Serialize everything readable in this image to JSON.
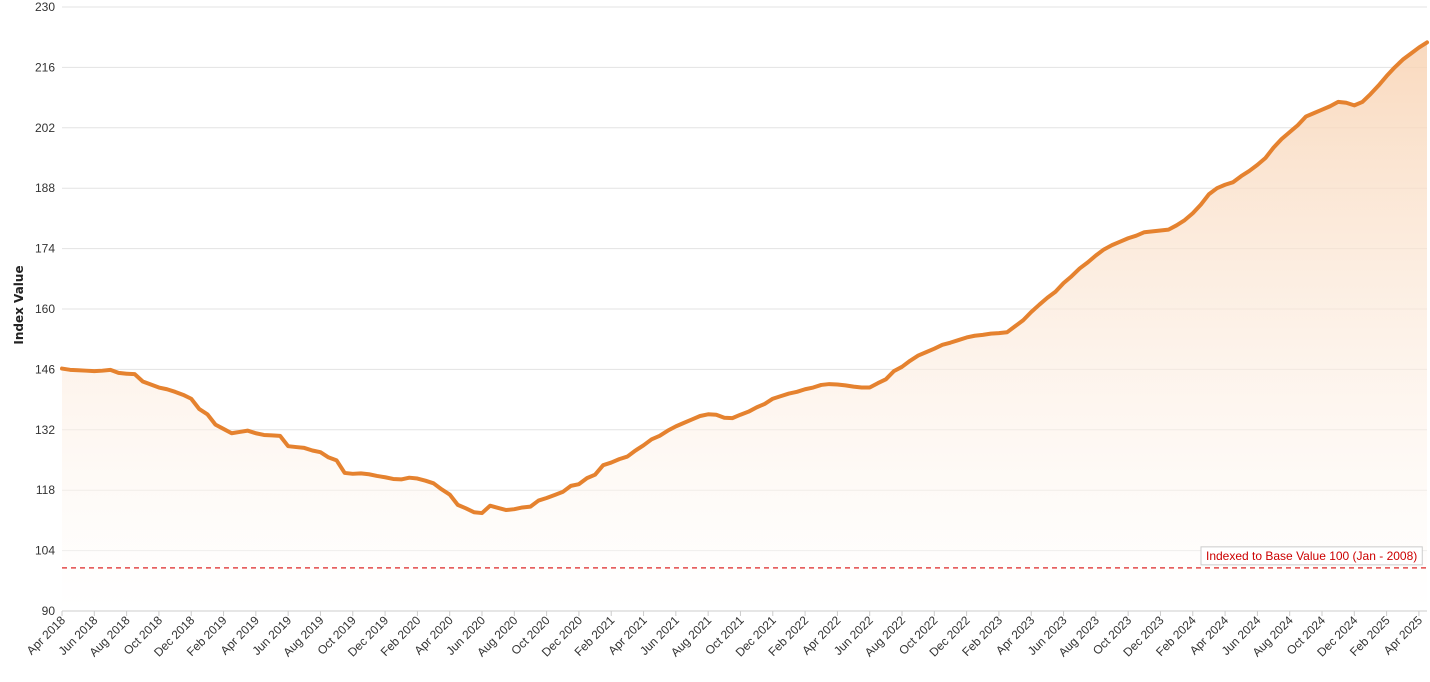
{
  "chart_data": {
    "type": "area",
    "ylabel": "Index Value",
    "xlabel": "",
    "title": "",
    "ylim": [
      90,
      230
    ],
    "yticks": [
      90,
      104,
      118,
      132,
      146,
      160,
      174,
      188,
      202,
      216,
      230
    ],
    "grid": true,
    "x_tick_labels": [
      "Apr 2018",
      "Jun 2018",
      "Aug 2018",
      "Oct 2018",
      "Dec 2018",
      "Feb 2019",
      "Apr 2019",
      "Jun 2019",
      "Aug 2019",
      "Oct 2019",
      "Dec 2019",
      "Feb 2020",
      "Apr 2020",
      "Jun 2020",
      "Aug 2020",
      "Oct 2020",
      "Dec 2020",
      "Feb 2021",
      "Apr 2021",
      "Jun 2021",
      "Aug 2021",
      "Oct 2021",
      "Dec 2021",
      "Feb 2022",
      "Apr 2022",
      "Jun 2022",
      "Aug 2022",
      "Oct 2022",
      "Dec 2022",
      "Feb 2023",
      "Apr 2023",
      "Jun 2023",
      "Aug 2023",
      "Oct 2023",
      "Dec 2023",
      "Feb 2024",
      "Apr 2024",
      "Jun 2024",
      "Aug 2024",
      "Oct 2024",
      "Dec 2024",
      "Feb 2025",
      "Apr 2025"
    ],
    "x_start": "Apr 2018",
    "values": [
      146.2,
      145.9,
      145.8,
      145.7,
      145.6,
      145.7,
      145.9,
      145.2,
      145.0,
      144.9,
      143.2,
      142.5,
      141.8,
      141.4,
      140.8,
      140.1,
      139.2,
      136.8,
      135.6,
      133.2,
      132.2,
      131.2,
      131.5,
      131.8,
      131.2,
      130.8,
      130.7,
      130.6,
      128.2,
      128.0,
      127.8,
      127.2,
      126.8,
      125.6,
      124.9,
      122.0,
      121.8,
      121.9,
      121.7,
      121.3,
      121.0,
      120.6,
      120.5,
      120.9,
      120.7,
      120.2,
      119.6,
      118.2,
      117.0,
      114.6,
      113.8,
      112.9,
      112.7,
      114.4,
      113.9,
      113.4,
      113.6,
      114.0,
      114.2,
      115.6,
      116.2,
      116.9,
      117.6,
      119.0,
      119.4,
      120.8,
      121.6,
      123.8,
      124.4,
      125.2,
      125.8,
      127.2,
      128.4,
      129.8,
      130.6,
      131.8,
      132.8,
      133.6,
      134.4,
      135.2,
      135.6,
      135.5,
      134.8,
      134.7,
      135.5,
      136.2,
      137.2,
      138.0,
      139.2,
      139.8,
      140.4,
      140.8,
      141.4,
      141.8,
      142.4,
      142.6,
      142.5,
      142.3,
      142.0,
      141.8,
      141.8,
      142.8,
      143.7,
      145.6,
      146.6,
      148.0,
      149.2,
      150.0,
      150.8,
      151.7,
      152.2,
      152.8,
      153.4,
      153.8,
      154.0,
      154.3,
      154.4,
      154.6,
      156.0,
      157.4,
      159.3,
      161.0,
      162.6,
      164.0,
      166.0,
      167.6,
      169.4,
      170.8,
      172.4,
      173.8,
      174.8,
      175.6,
      176.4,
      177.0,
      177.8,
      178.0,
      178.2,
      178.4,
      179.4,
      180.6,
      182.2,
      184.2,
      186.6,
      188.0,
      188.8,
      189.4,
      190.8,
      192.0,
      193.4,
      195.0,
      197.4,
      199.4,
      201.0,
      202.6,
      204.6,
      205.4,
      206.2,
      207.0,
      208.0,
      207.8,
      207.2,
      208.0,
      209.8,
      211.8,
      214.0,
      216.0,
      217.8,
      219.2,
      220.6,
      221.8
    ]
  },
  "reference_line": {
    "value": 100,
    "label": "Indexed to Base Value 100 (Jan - 2008)",
    "color": "#e34a4a"
  },
  "colors": {
    "line": "#e5822f",
    "area_top": "#f8d3b3",
    "area_bottom": "#ffffff",
    "grid": "#e3e3e3",
    "axis": "#cccccc"
  }
}
